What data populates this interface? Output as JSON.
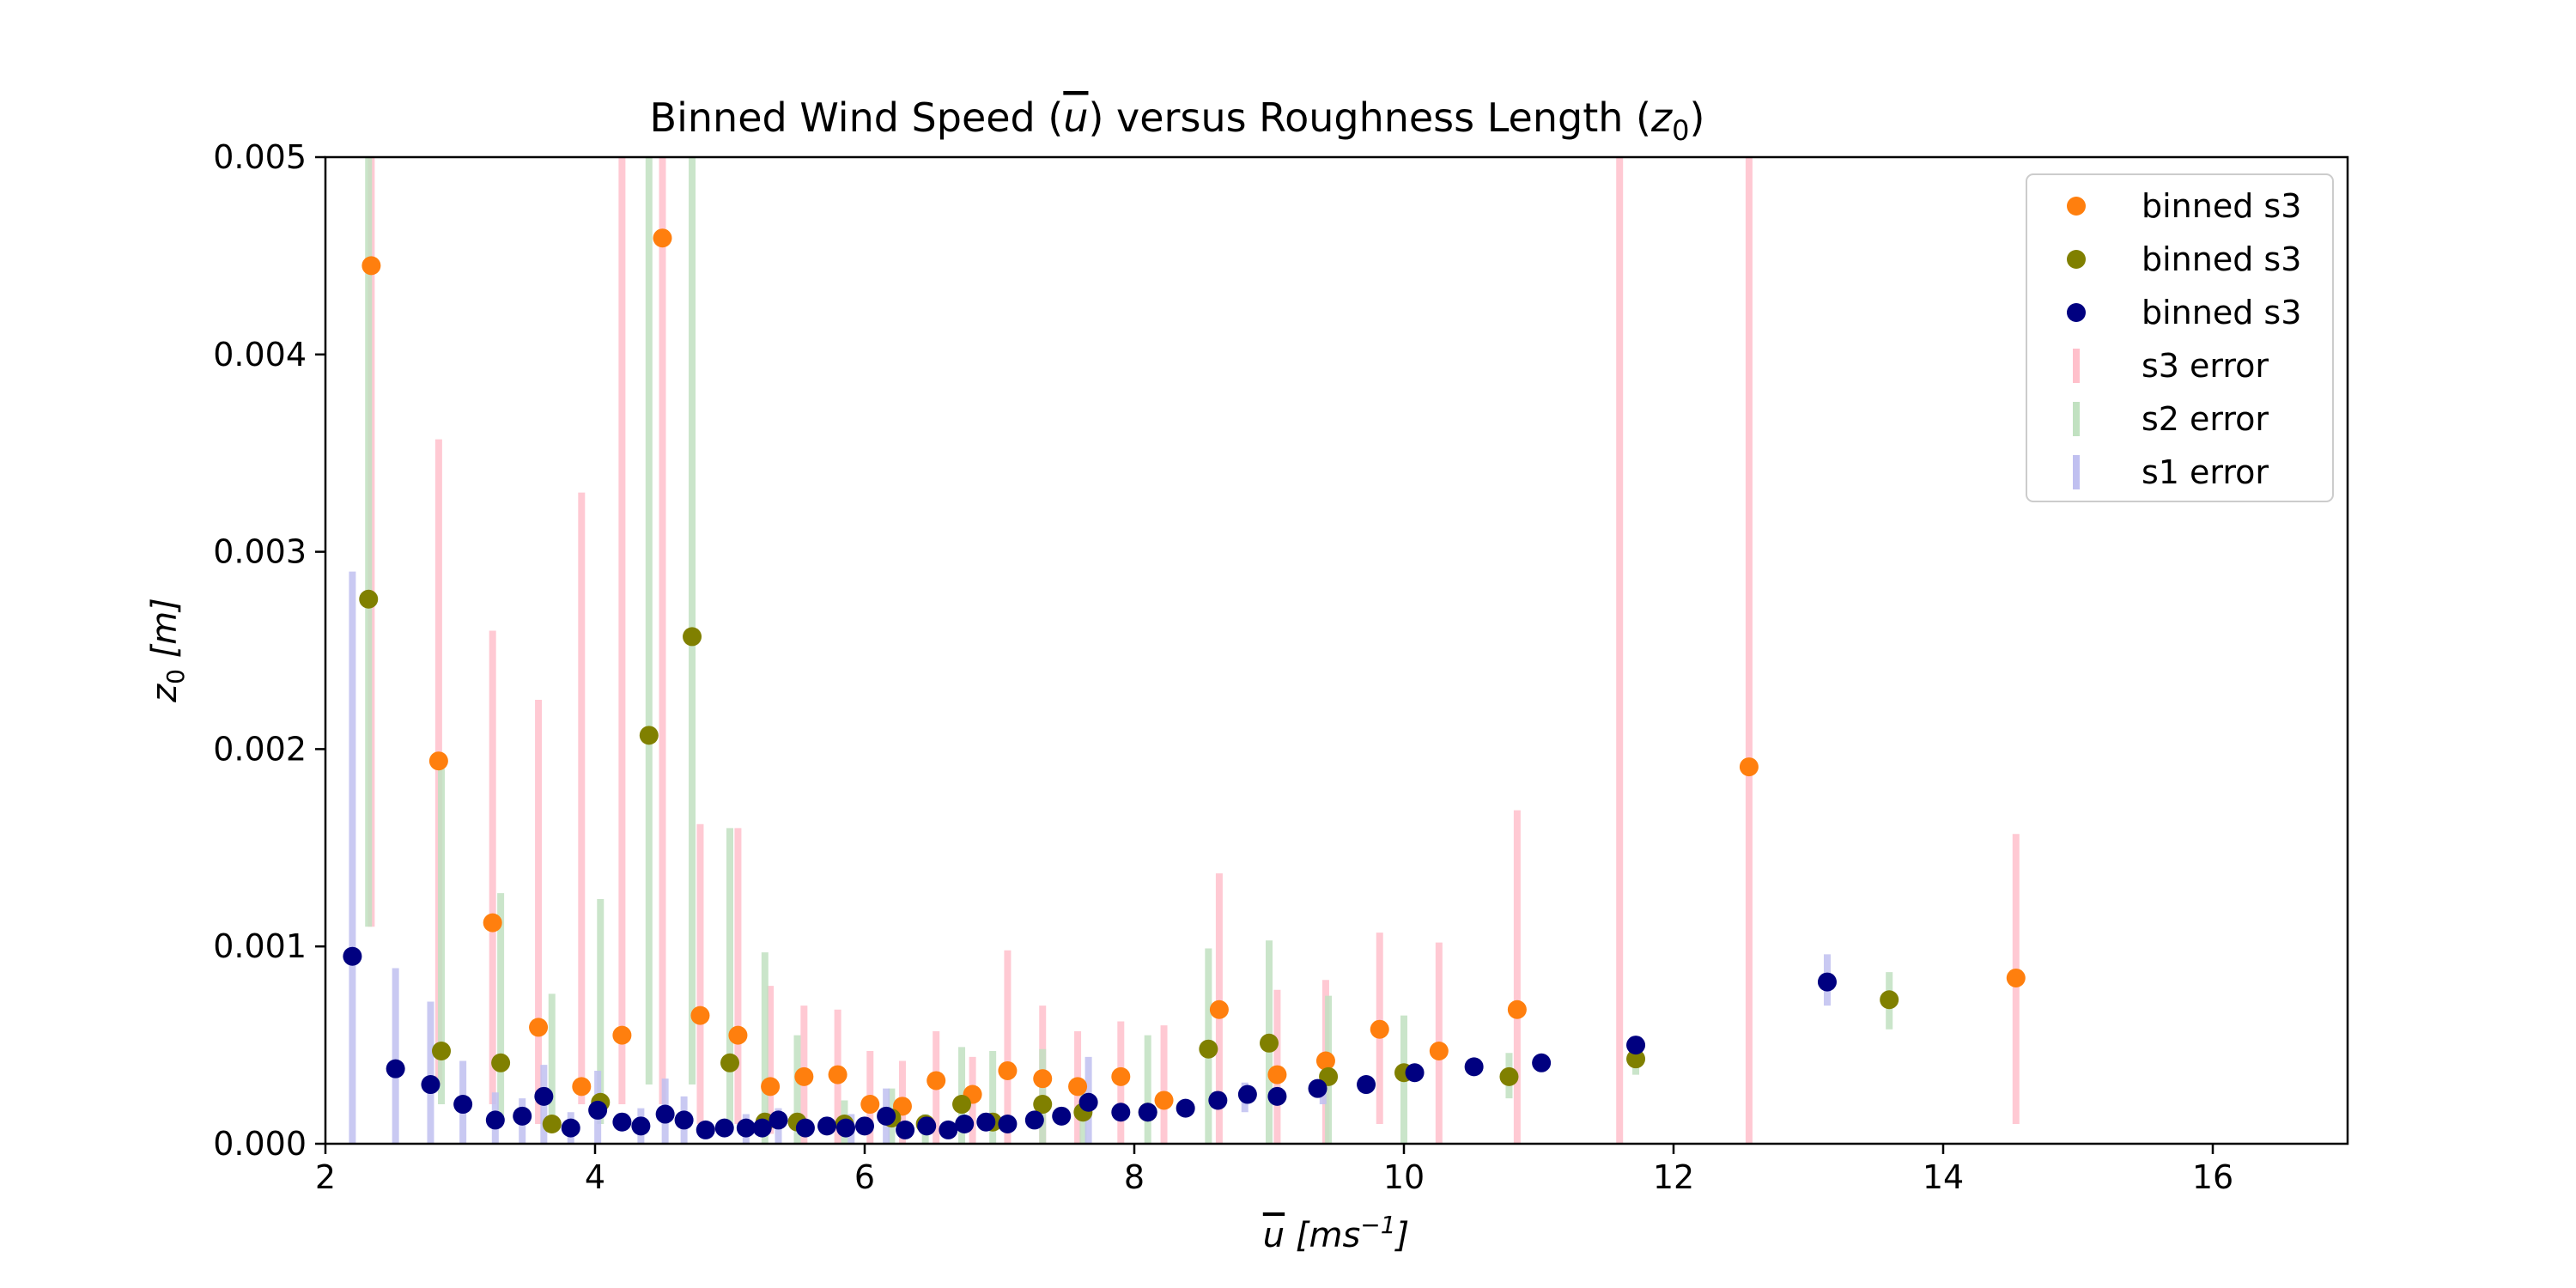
{
  "chart_data": {
    "type": "scatter",
    "title_parts": {
      "prefix": "Binned Wind Speed (",
      "ubar": "u",
      "middle": ") versus Roughness Length (",
      "z": "z",
      "sub": "0",
      "suffix": ")"
    },
    "xlabel_parts": {
      "ubar": "u",
      "unit": "[ms",
      "exp": "−1",
      "close": "]"
    },
    "ylabel_parts": {
      "z": "z",
      "sub": "0",
      "unit": "[m]"
    },
    "xlim": [
      2,
      17
    ],
    "ylim": [
      0,
      0.005
    ],
    "xticks": [
      {
        "value": 2,
        "label": "2"
      },
      {
        "value": 4,
        "label": "4"
      },
      {
        "value": 6,
        "label": "6"
      },
      {
        "value": 8,
        "label": "8"
      },
      {
        "value": 10,
        "label": "10"
      },
      {
        "value": 12,
        "label": "12"
      },
      {
        "value": 14,
        "label": "14"
      },
      {
        "value": 16,
        "label": "16"
      }
    ],
    "yticks": [
      {
        "value": 0,
        "label": "0.000"
      },
      {
        "value": 0.001,
        "label": "0.001"
      },
      {
        "value": 0.002,
        "label": "0.002"
      },
      {
        "value": 0.003,
        "label": "0.003"
      },
      {
        "value": 0.004,
        "label": "0.004"
      },
      {
        "value": 0.005,
        "label": "0.005"
      }
    ],
    "grid": false,
    "legend_position": "top-right",
    "legend": [
      {
        "label": "binned s3",
        "kind": "marker",
        "color": "#ff7f0e"
      },
      {
        "label": "binned s3",
        "kind": "marker",
        "color": "#808000"
      },
      {
        "label": "binned s3",
        "kind": "marker",
        "color": "#000080"
      },
      {
        "label": "s3 error",
        "kind": "bar",
        "color": "#ffc0cb"
      },
      {
        "label": "s2 error",
        "kind": "bar",
        "color": "#c1e1c1"
      },
      {
        "label": "s1 error",
        "kind": "bar",
        "color": "#c0c0f0"
      }
    ],
    "error_series": [
      {
        "name": "s3 error",
        "color": "#ffc0cb",
        "bars": [
          [
            2.34,
            0.0011,
            0.005
          ],
          [
            2.84,
            0.0003,
            0.00357
          ],
          [
            3.24,
            0.0002,
            0.0026
          ],
          [
            3.58,
            0.0001,
            0.00225
          ],
          [
            3.9,
            0.0002,
            0.0033
          ],
          [
            4.2,
            0.0002,
            0.005
          ],
          [
            4.5,
            0.0002,
            0.005
          ],
          [
            4.78,
            0.0001,
            0.00162
          ],
          [
            5.06,
            0.0001,
            0.0016
          ],
          [
            5.3,
            5e-05,
            0.0008
          ],
          [
            5.55,
            0.0,
            0.0007
          ],
          [
            5.8,
            0.0,
            0.00068
          ],
          [
            6.04,
            0.0,
            0.00047
          ],
          [
            6.28,
            0.0,
            0.00042
          ],
          [
            6.53,
            0.0,
            0.00057
          ],
          [
            6.8,
            0.0,
            0.00044
          ],
          [
            7.06,
            0.0,
            0.00098
          ],
          [
            7.32,
            0.0,
            0.0007
          ],
          [
            7.58,
            0.0,
            0.00057
          ],
          [
            7.9,
            0.0,
            0.00062
          ],
          [
            8.22,
            0.0,
            0.0006
          ],
          [
            8.63,
            0.0,
            0.00137
          ],
          [
            9.06,
            0.0,
            0.00078
          ],
          [
            9.42,
            0.0,
            0.00083
          ],
          [
            9.82,
            0.0001,
            0.00107
          ],
          [
            10.26,
            0.0,
            0.00102
          ],
          [
            10.84,
            0.0,
            0.00169
          ],
          [
            11.6,
            0.0,
            0.005
          ],
          [
            12.56,
            0.0,
            0.005
          ],
          [
            14.54,
            0.0001,
            0.00157
          ]
        ]
      },
      {
        "name": "s2 error",
        "color": "#c1e1c1",
        "bars": [
          [
            2.32,
            0.0011,
            0.005
          ],
          [
            2.86,
            0.0002,
            0.0019
          ],
          [
            3.3,
            0.0001,
            0.00127
          ],
          [
            3.68,
            0.0001,
            0.00076
          ],
          [
            4.04,
            0.0001,
            0.00124
          ],
          [
            4.4,
            0.0003,
            0.005
          ],
          [
            4.72,
            0.0003,
            0.005
          ],
          [
            5.0,
            0.0001,
            0.0016
          ],
          [
            5.26,
            0.0,
            0.00097
          ],
          [
            5.5,
            0.0,
            0.00055
          ],
          [
            5.85,
            0.0,
            0.00022
          ],
          [
            6.2,
            0.0,
            0.00028
          ],
          [
            6.45,
            0.0,
            0.00015
          ],
          [
            6.72,
            0.0,
            0.00049
          ],
          [
            6.95,
            0.0,
            0.00047
          ],
          [
            7.32,
            0.0,
            0.00048
          ],
          [
            7.62,
            0.0,
            0.00026
          ],
          [
            8.1,
            0.0,
            0.00055
          ],
          [
            8.55,
            0.0,
            0.00099
          ],
          [
            9.0,
            0.0,
            0.00103
          ],
          [
            9.44,
            0.0,
            0.00075
          ],
          [
            10.0,
            0.0,
            0.00065
          ],
          [
            10.78,
            0.00023,
            0.00046
          ],
          [
            11.72,
            0.00035,
            0.00052
          ],
          [
            13.6,
            0.00058,
            0.00087
          ]
        ]
      },
      {
        "name": "s1 error",
        "color": "#c0c0f0",
        "bars": [
          [
            2.2,
            0.0,
            0.0029
          ],
          [
            2.52,
            0.0,
            0.00089
          ],
          [
            2.78,
            0.0,
            0.00072
          ],
          [
            3.02,
            0.0,
            0.00042
          ],
          [
            3.26,
            0.0,
            0.00026
          ],
          [
            3.46,
            0.0,
            0.00023
          ],
          [
            3.62,
            0.0,
            0.0004
          ],
          [
            3.82,
            0.0,
            0.00016
          ],
          [
            4.02,
            0.0,
            0.00037
          ],
          [
            4.34,
            0.0,
            0.00018
          ],
          [
            4.52,
            0.0,
            0.00033
          ],
          [
            4.66,
            0.0,
            0.00024
          ],
          [
            5.12,
            0.0,
            0.00015
          ],
          [
            5.36,
            0.0,
            0.00018
          ],
          [
            5.9,
            0.0,
            0.00015
          ],
          [
            6.16,
            0.0,
            0.00028
          ],
          [
            7.66,
            0.0,
            0.00044
          ],
          [
            8.82,
            0.00016,
            0.00031
          ],
          [
            9.4,
            0.0002,
            0.00034
          ],
          [
            13.14,
            0.0007,
            0.00096
          ]
        ]
      }
    ],
    "series": [
      {
        "name": "binned s3",
        "color": "#ff7f0e",
        "points": [
          [
            2.34,
            0.00445
          ],
          [
            2.84,
            0.00194
          ],
          [
            3.24,
            0.00112
          ],
          [
            3.58,
            0.00059
          ],
          [
            3.9,
            0.00029
          ],
          [
            4.2,
            0.00055
          ],
          [
            4.5,
            0.00459
          ],
          [
            4.78,
            0.00065
          ],
          [
            5.06,
            0.00055
          ],
          [
            5.3,
            0.00029
          ],
          [
            5.55,
            0.00034
          ],
          [
            5.8,
            0.00035
          ],
          [
            6.04,
            0.0002
          ],
          [
            6.28,
            0.00019
          ],
          [
            6.53,
            0.00032
          ],
          [
            6.8,
            0.00025
          ],
          [
            7.06,
            0.00037
          ],
          [
            7.32,
            0.00033
          ],
          [
            7.58,
            0.00029
          ],
          [
            7.9,
            0.00034
          ],
          [
            8.22,
            0.00022
          ],
          [
            8.63,
            0.00068
          ],
          [
            9.06,
            0.00035
          ],
          [
            9.42,
            0.00042
          ],
          [
            9.82,
            0.00058
          ],
          [
            10.26,
            0.00047
          ],
          [
            10.84,
            0.00068
          ],
          [
            12.56,
            0.00191
          ],
          [
            14.54,
            0.00084
          ]
        ]
      },
      {
        "name": "binned s3",
        "color": "#808000",
        "points": [
          [
            2.32,
            0.00276
          ],
          [
            2.86,
            0.00047
          ],
          [
            3.3,
            0.00041
          ],
          [
            3.68,
            0.0001
          ],
          [
            4.04,
            0.00021
          ],
          [
            4.4,
            0.00207
          ],
          [
            4.72,
            0.00257
          ],
          [
            5.0,
            0.00041
          ],
          [
            5.26,
            0.00011
          ],
          [
            5.5,
            0.00011
          ],
          [
            5.85,
            0.0001
          ],
          [
            6.2,
            0.00013
          ],
          [
            6.45,
            0.0001
          ],
          [
            6.72,
            0.0002
          ],
          [
            6.95,
            0.00011
          ],
          [
            7.32,
            0.0002
          ],
          [
            7.62,
            0.00016
          ],
          [
            8.1,
            0.00016
          ],
          [
            8.55,
            0.00048
          ],
          [
            9.0,
            0.00051
          ],
          [
            9.44,
            0.00034
          ],
          [
            10.0,
            0.00036
          ],
          [
            10.78,
            0.00034
          ],
          [
            11.72,
            0.00043
          ],
          [
            13.6,
            0.00073
          ]
        ]
      },
      {
        "name": "binned s3",
        "color": "#000080",
        "points": [
          [
            2.2,
            0.00095
          ],
          [
            2.52,
            0.00038
          ],
          [
            2.78,
            0.0003
          ],
          [
            3.02,
            0.0002
          ],
          [
            3.26,
            0.00012
          ],
          [
            3.46,
            0.00014
          ],
          [
            3.62,
            0.00024
          ],
          [
            3.82,
            8e-05
          ],
          [
            4.02,
            0.00017
          ],
          [
            4.2,
            0.00011
          ],
          [
            4.34,
            9e-05
          ],
          [
            4.52,
            0.00015
          ],
          [
            4.66,
            0.00012
          ],
          [
            4.82,
            7e-05
          ],
          [
            4.96,
            8e-05
          ],
          [
            5.12,
            8e-05
          ],
          [
            5.24,
            8e-05
          ],
          [
            5.36,
            0.00012
          ],
          [
            5.56,
            8e-05
          ],
          [
            5.72,
            9e-05
          ],
          [
            5.86,
            8e-05
          ],
          [
            6.0,
            9e-05
          ],
          [
            6.16,
            0.00014
          ],
          [
            6.3,
            7e-05
          ],
          [
            6.46,
            9e-05
          ],
          [
            6.62,
            7e-05
          ],
          [
            6.74,
            0.0001
          ],
          [
            6.9,
            0.00011
          ],
          [
            7.06,
            0.0001
          ],
          [
            7.26,
            0.00012
          ],
          [
            7.46,
            0.00014
          ],
          [
            7.66,
            0.00021
          ],
          [
            7.9,
            0.00016
          ],
          [
            8.1,
            0.00016
          ],
          [
            8.38,
            0.00018
          ],
          [
            8.62,
            0.00022
          ],
          [
            8.84,
            0.00025
          ],
          [
            9.06,
            0.00024
          ],
          [
            9.36,
            0.00028
          ],
          [
            9.72,
            0.0003
          ],
          [
            10.08,
            0.00036
          ],
          [
            10.52,
            0.00039
          ],
          [
            11.02,
            0.00041
          ],
          [
            11.72,
            0.0005
          ],
          [
            13.14,
            0.00082
          ]
        ]
      }
    ]
  }
}
